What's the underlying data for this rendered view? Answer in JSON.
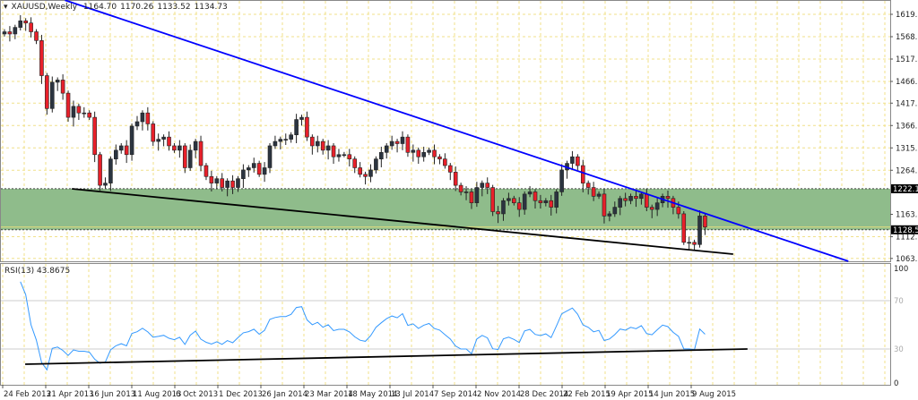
{
  "header": {
    "symbol": "XAUUSD,Weekly",
    "open": "1164.70",
    "high": "1170.26",
    "low": "1133.52",
    "close": "1134.73"
  },
  "rsi": {
    "label": "RSI(13) 43.8675",
    "period": 13
  },
  "colors": {
    "bull_candle": "#2b3440",
    "bear_candle": "#e8202a",
    "zone_fill": "#8fbc8b",
    "trendline_blue": "#0000ff",
    "trendline_black": "#000000",
    "rsi_line": "#3399ff",
    "grid": "#f0e08a",
    "marker_bg": "#000000"
  },
  "chart_data": {
    "type": "candlestick",
    "timeframe": "Weekly",
    "x_tick_labels": [
      "24 Feb 2013",
      "21 Apr 2013",
      "16 Jun 2013",
      "11 Aug 2013",
      "6 Oct 2013",
      "1 Dec 2013",
      "26 Jan 2014",
      "23 Mar 2014",
      "18 May 2014",
      "13 Jul 2014",
      "7 Sep 2014",
      "2 Nov 2014",
      "28 Dec 2014",
      "22 Feb 2015",
      "19 Apr 2015",
      "14 Jun 2015",
      "9 Aug 2015"
    ],
    "price_tick_labels": [
      "1619.80",
      "1568.80",
      "1517.80",
      "1466.80",
      "1417.30",
      "1366.30",
      "1315.30",
      "1264.30",
      "1163.80",
      "1112.80",
      "1063.30"
    ],
    "price_markers": [
      "1222.19",
      "1128.59"
    ],
    "ylim": [
      1060,
      1652
    ],
    "close": [
      1580,
      1575,
      1590,
      1605,
      1600,
      1580,
      1560,
      1480,
      1405,
      1465,
      1470,
      1440,
      1385,
      1410,
      1395,
      1395,
      1385,
      1300,
      1230,
      1235,
      1290,
      1310,
      1320,
      1300,
      1365,
      1375,
      1395,
      1370,
      1330,
      1335,
      1340,
      1320,
      1310,
      1320,
      1270,
      1310,
      1330,
      1275,
      1250,
      1235,
      1245,
      1225,
      1240,
      1225,
      1245,
      1265,
      1270,
      1280,
      1255,
      1270,
      1320,
      1330,
      1335,
      1335,
      1345,
      1380,
      1385,
      1340,
      1320,
      1330,
      1310,
      1320,
      1295,
      1300,
      1300,
      1290,
      1270,
      1255,
      1250,
      1265,
      1290,
      1305,
      1320,
      1330,
      1325,
      1340,
      1305,
      1310,
      1295,
      1305,
      1310,
      1295,
      1290,
      1275,
      1260,
      1230,
      1215,
      1215,
      1190,
      1225,
      1235,
      1225,
      1170,
      1165,
      1195,
      1200,
      1190,
      1175,
      1210,
      1215,
      1195,
      1190,
      1195,
      1180,
      1215,
      1265,
      1280,
      1295,
      1275,
      1235,
      1225,
      1205,
      1210,
      1160,
      1165,
      1180,
      1200,
      1195,
      1205,
      1200,
      1210,
      1180,
      1175,
      1190,
      1205,
      1200,
      1180,
      1165,
      1100,
      1100,
      1095,
      1160,
      1134.73
    ],
    "support_zone": [
      1128.59,
      1222.19
    ],
    "trendlines": [
      {
        "color": "blue",
        "points": [
          [
            11.4,
            1652
          ],
          [
            159,
            1057
          ]
        ]
      },
      {
        "color": "black",
        "points": [
          [
            12.7,
            1222
          ],
          [
            137.3,
            1073
          ]
        ]
      }
    ],
    "rsi_pane": {
      "ylim": [
        0,
        100
      ],
      "tick_labels": [
        "100",
        "70",
        "30",
        "0"
      ],
      "levels": [
        70,
        30
      ],
      "current": 43.8675,
      "trendline": [
        [
          3.9,
          17.4
        ],
        [
          140,
          30
        ]
      ]
    }
  }
}
